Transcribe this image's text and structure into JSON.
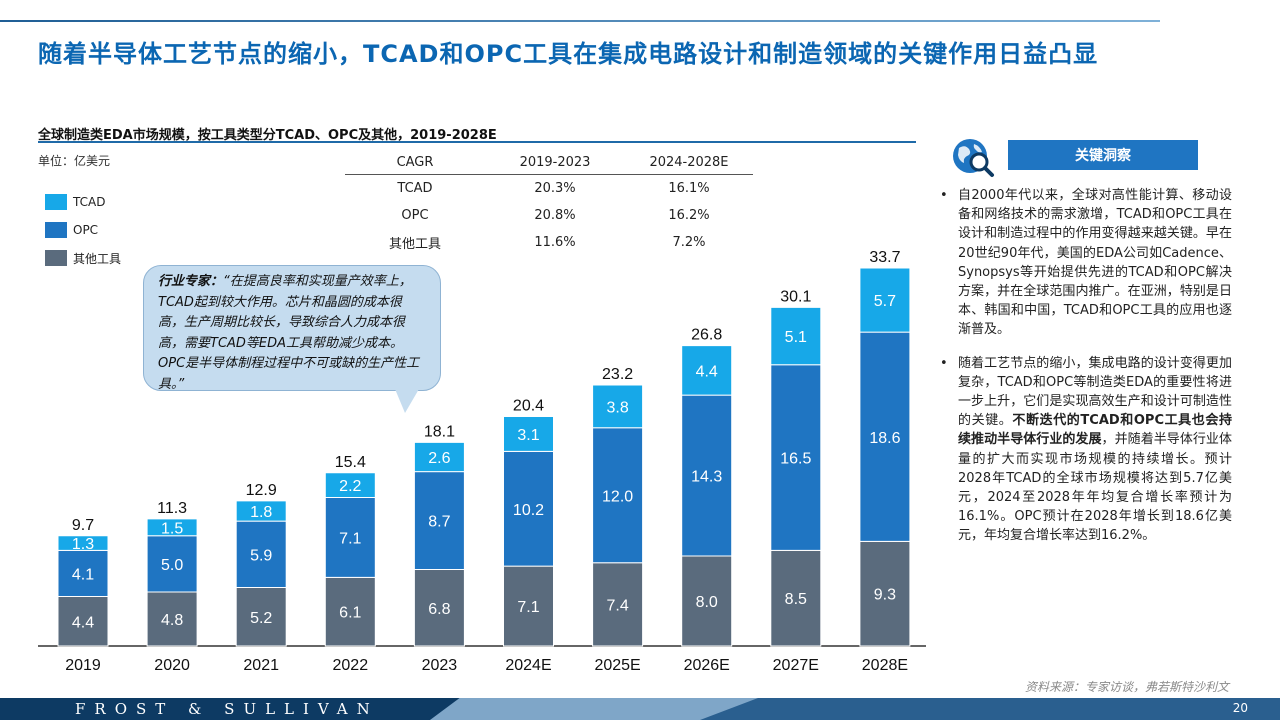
{
  "page": {
    "title": "随着半导体工艺节点的缩小，TCAD和OPC工具在集成电路设计和制造领域的关键作用日益凸显",
    "chart_title": "全球制造类EDA市场规模，按工具类型分TCAD、OPC及其他，2019-2028E",
    "unit": "单位：亿美元",
    "source": "资料来源：专家访谈，弗若斯特沙利文",
    "brand": "FROST & SULLIVAN",
    "page_number": "20"
  },
  "legend": [
    {
      "label": "TCAD",
      "color": "#17a8e8"
    },
    {
      "label": "OPC",
      "color": "#1f75c2"
    },
    {
      "label": "其他工具",
      "color": "#5a6b7d"
    }
  ],
  "cagr_table": {
    "headers": [
      "CAGR",
      "2019-2023",
      "2024-2028E"
    ],
    "rows": [
      [
        "TCAD",
        "20.3%",
        "16.1%"
      ],
      [
        "OPC",
        "20.8%",
        "16.2%"
      ],
      [
        "其他工具",
        "11.6%",
        "7.2%"
      ]
    ]
  },
  "expert_quote": {
    "speaker": "行业专家：",
    "text": "“在提高良率和实现量产效率上，TCAD起到较大作用。芯片和晶圆的成本很高，生产周期比较长，导致综合人力成本很高，需要TCAD等EDA工具帮助减少成本。OPC是半导体制程过程中不可或缺的生产性工具。”"
  },
  "insights": {
    "header": "关键洞察",
    "items": [
      {
        "text": "自2000年代以来，全球对高性能计算、移动设备和网络技术的需求激增，TCAD和OPC工具在设计和制造过程中的作用变得越来越关键。早在20世纪90年代，美国的EDA公司如Cadence、Synopsys等开始提供先进的TCAD和OPC解决方案，并在全球范围内推广。在亚洲，特别是日本、韩国和中国，TCAD和OPC工具的应用也逐渐普及。"
      },
      {
        "text_before": "随着工艺节点的缩小，集成电路的设计变得更加复杂，TCAD和OPC等制造类EDA的重要性将进一步上升，它们是实现高效生产和设计可制造性的关键。",
        "text_bold": "不断迭代的TCAD和OPC工具也会持续推动半导体行业的发展",
        "text_after": "，并随着半导体行业体量的扩大而实现市场规模的持续增长。预计2028年TCAD的全球市场规模将达到5.7亿美元，2024至2028年年均复合增长率预计为16.1%。OPC预计在2028年增长到18.6亿美元，年均复合增长率达到16.2%。"
      }
    ]
  },
  "chart_data": {
    "type": "bar",
    "stacked": true,
    "title": "全球制造类EDA市场规模，按工具类型分TCAD、OPC及其他，2019-2028E",
    "ylabel": "单位：亿美元",
    "categories": [
      "2019",
      "2020",
      "2021",
      "2022",
      "2023",
      "2024E",
      "2025E",
      "2026E",
      "2027E",
      "2028E"
    ],
    "series": [
      {
        "name": "其他工具",
        "color": "#5a6b7d",
        "values": [
          4.4,
          4.8,
          5.2,
          6.1,
          6.8,
          7.1,
          7.4,
          8.0,
          8.5,
          9.3
        ]
      },
      {
        "name": "OPC",
        "color": "#1f75c2",
        "values": [
          4.1,
          5.0,
          5.9,
          7.1,
          8.7,
          10.2,
          12.0,
          14.3,
          16.5,
          18.6
        ]
      },
      {
        "name": "TCAD",
        "color": "#17a8e8",
        "values": [
          1.3,
          1.5,
          1.8,
          2.2,
          2.6,
          3.1,
          3.8,
          4.4,
          5.1,
          5.7
        ]
      }
    ],
    "totals": [
      "9.7",
      "11.3",
      "12.9",
      "15.4",
      "18.1",
      "20.4",
      "23.2",
      "26.8",
      "30.1",
      "33.7"
    ],
    "ylim": [
      0,
      36
    ],
    "grid": false,
    "legend_position": "top-left"
  }
}
